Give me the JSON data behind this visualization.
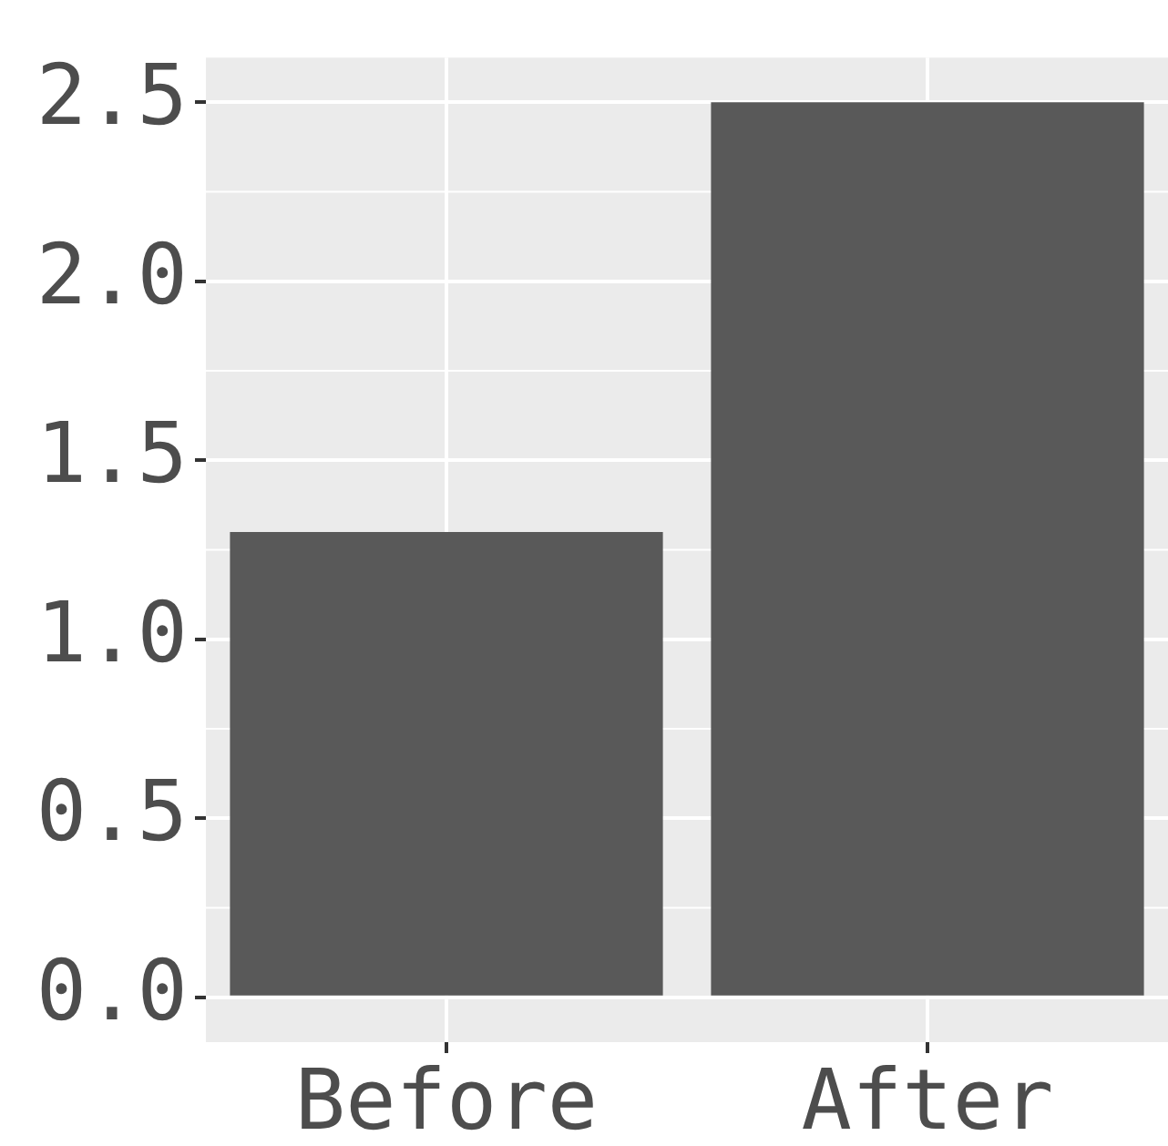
{
  "chart_data": {
    "type": "bar",
    "categories": [
      "Before",
      "After"
    ],
    "values": [
      1.3,
      2.5
    ],
    "color": "#595959",
    "ylim": [
      -0.125,
      2.625
    ],
    "yticks": [
      {
        "value": 0,
        "label": "0.0"
      },
      0.5,
      {
        "value": 1,
        "label": "1.0"
      },
      1.5,
      {
        "value": 2,
        "label": "2.0"
      },
      2.5
    ],
    "grid": true,
    "legend": false
  }
}
